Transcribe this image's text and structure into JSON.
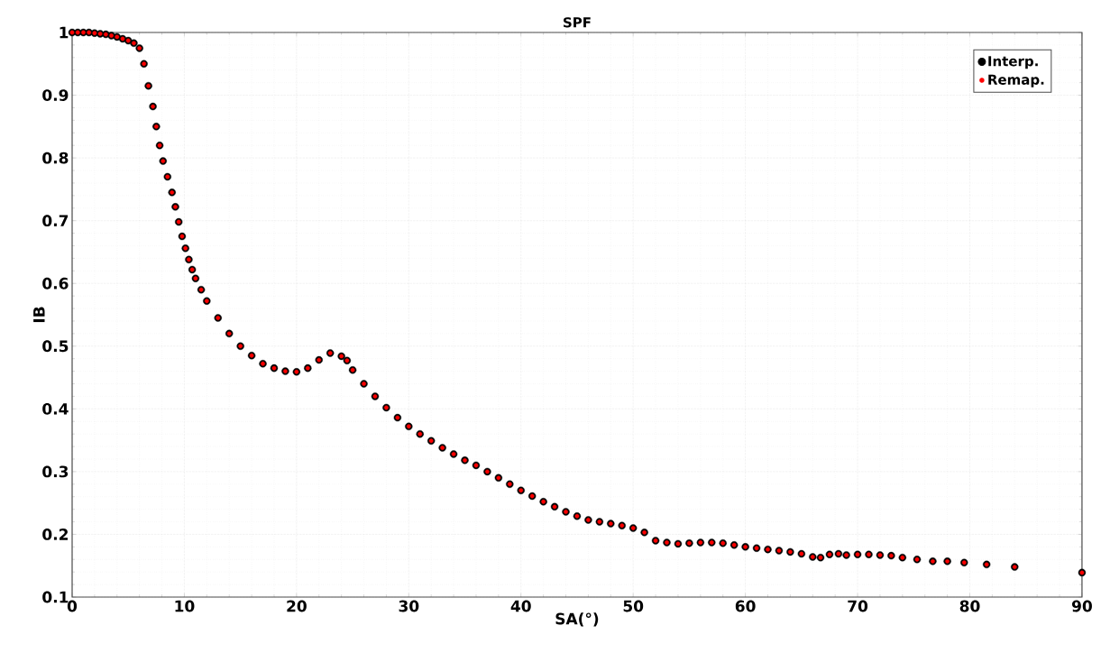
{
  "chart_data": {
    "type": "scatter",
    "title": "SPF",
    "xlabel": "SA(°)",
    "ylabel": "IB",
    "x": [
      0,
      0.5,
      1,
      1.5,
      2,
      2.5,
      3,
      3.5,
      4,
      4.5,
      5,
      5.5,
      6,
      6.4,
      6.8,
      7.2,
      7.5,
      7.8,
      8.1,
      8.5,
      8.9,
      9.2,
      9.5,
      9.8,
      10.1,
      10.4,
      10.7,
      11,
      11.5,
      12,
      13,
      14,
      15,
      16,
      17,
      18,
      19,
      20,
      21,
      22,
      23,
      24,
      24.5,
      25,
      26,
      27,
      28,
      29,
      30,
      31,
      32,
      33,
      34,
      35,
      36,
      37,
      38,
      39,
      40,
      41,
      42,
      43,
      44,
      45,
      46,
      47,
      48,
      49,
      50,
      51,
      52,
      53,
      54,
      55,
      56,
      57,
      58,
      59,
      60,
      61,
      62,
      63,
      64,
      65,
      66,
      66.7,
      67.5,
      68.3,
      69,
      70,
      71,
      72,
      73,
      74,
      75.3,
      76.7,
      78,
      79.5,
      81.5,
      84,
      90
    ],
    "series": [
      {
        "name": "Interp.",
        "color": "#000000",
        "values": [
          1.0,
          1.0,
          1.0,
          1.0,
          0.999,
          0.998,
          0.997,
          0.995,
          0.993,
          0.99,
          0.987,
          0.983,
          0.975,
          0.95,
          0.915,
          0.882,
          0.85,
          0.82,
          0.795,
          0.77,
          0.745,
          0.722,
          0.698,
          0.675,
          0.656,
          0.638,
          0.622,
          0.608,
          0.59,
          0.572,
          0.545,
          0.52,
          0.5,
          0.485,
          0.472,
          0.465,
          0.46,
          0.459,
          0.465,
          0.478,
          0.489,
          0.484,
          0.477,
          0.462,
          0.44,
          0.42,
          0.402,
          0.386,
          0.372,
          0.36,
          0.349,
          0.338,
          0.328,
          0.318,
          0.31,
          0.3,
          0.29,
          0.28,
          0.27,
          0.261,
          0.252,
          0.244,
          0.236,
          0.229,
          0.223,
          0.22,
          0.217,
          0.214,
          0.21,
          0.203,
          0.19,
          0.187,
          0.185,
          0.186,
          0.187,
          0.187,
          0.186,
          0.183,
          0.18,
          0.178,
          0.176,
          0.174,
          0.172,
          0.169,
          0.164,
          0.163,
          0.168,
          0.169,
          0.167,
          0.168,
          0.168,
          0.167,
          0.166,
          0.163,
          0.16,
          0.157,
          0.157,
          0.155,
          0.152,
          0.148,
          0.139
        ]
      },
      {
        "name": "Remap.",
        "color": "#ff0000",
        "values": [
          1.0,
          1.0,
          1.0,
          1.0,
          0.999,
          0.998,
          0.997,
          0.995,
          0.993,
          0.99,
          0.987,
          0.983,
          0.975,
          0.95,
          0.915,
          0.882,
          0.85,
          0.82,
          0.795,
          0.77,
          0.745,
          0.722,
          0.698,
          0.675,
          0.656,
          0.638,
          0.622,
          0.608,
          0.59,
          0.572,
          0.545,
          0.52,
          0.5,
          0.485,
          0.472,
          0.465,
          0.46,
          0.459,
          0.465,
          0.478,
          0.489,
          0.484,
          0.477,
          0.462,
          0.44,
          0.42,
          0.402,
          0.386,
          0.372,
          0.36,
          0.349,
          0.338,
          0.328,
          0.318,
          0.31,
          0.3,
          0.29,
          0.28,
          0.27,
          0.261,
          0.252,
          0.244,
          0.236,
          0.229,
          0.223,
          0.22,
          0.217,
          0.214,
          0.21,
          0.203,
          0.19,
          0.187,
          0.185,
          0.186,
          0.187,
          0.187,
          0.186,
          0.183,
          0.18,
          0.178,
          0.176,
          0.174,
          0.172,
          0.169,
          0.164,
          0.163,
          0.168,
          0.169,
          0.167,
          0.168,
          0.168,
          0.167,
          0.166,
          0.163,
          0.16,
          0.157,
          0.157,
          0.155,
          0.152,
          0.148,
          0.139
        ]
      }
    ],
    "xlim": [
      0,
      90
    ],
    "ylim": [
      0.1,
      1
    ],
    "xticks": [
      0,
      10,
      20,
      30,
      40,
      50,
      60,
      70,
      80,
      90
    ],
    "yticks": [
      0.1,
      0.2,
      0.3,
      0.4,
      0.5,
      0.6,
      0.7,
      0.8,
      0.9,
      {
        "value": 1,
        "label": "1"
      }
    ],
    "grid": true,
    "legend": "top right",
    "marker": "circle"
  }
}
